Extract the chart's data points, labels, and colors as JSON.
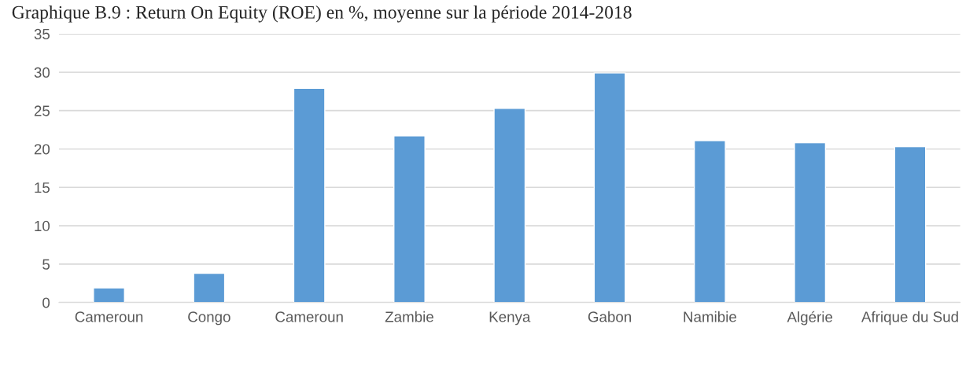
{
  "chart_data": {
    "type": "bar",
    "title": "Graphique B.9 : Return On Equity (ROE) en %, moyenne sur la période 2014-2018",
    "categories": [
      "Cameroun",
      "Congo",
      "Cameroun",
      "Zambie",
      "Kenya",
      "Gabon",
      "Namibie",
      "Algérie",
      "Afrique du Sud"
    ],
    "values": [
      1.9,
      3.8,
      27.9,
      21.7,
      25.3,
      29.9,
      21.1,
      20.8,
      20.3
    ],
    "color": "#5b9bd5",
    "ylim": [
      0,
      35
    ],
    "yticks": [
      0,
      5,
      10,
      15,
      20,
      25,
      30,
      35
    ],
    "grid": "y",
    "legend": false
  }
}
